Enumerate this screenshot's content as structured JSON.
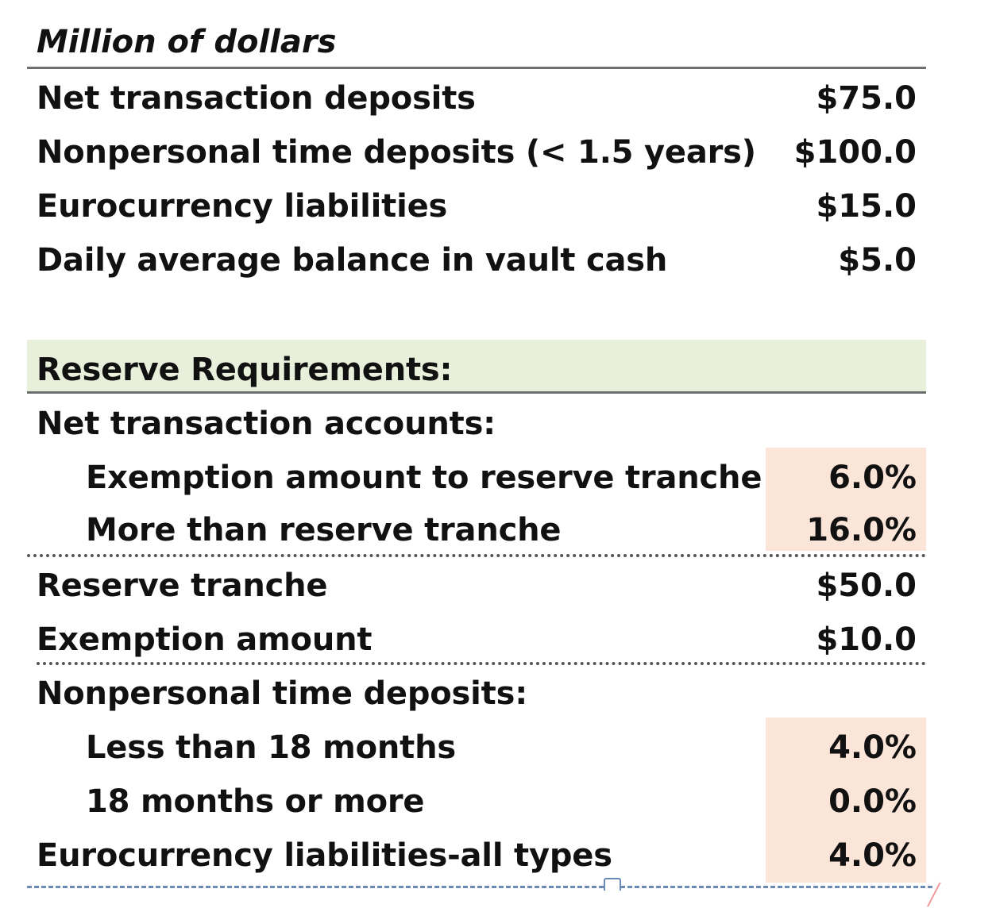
{
  "header": {
    "title": "Million of dollars"
  },
  "balances": [
    {
      "label": "Net transaction deposits",
      "value": "$75.0"
    },
    {
      "label": "Nonpersonal time deposits (< 1.5 years)",
      "value": "$100.0"
    },
    {
      "label": "Eurocurrency liabilities",
      "value": "$15.0"
    },
    {
      "label": "Daily average balance in vault cash",
      "value": "$5.0"
    }
  ],
  "reserve": {
    "heading": "Reserve Requirements:",
    "net_transaction": {
      "label": "Net transaction accounts:",
      "exemption_to_tranche": {
        "label": "Exemption amount to reserve tranche",
        "value": "6.0%"
      },
      "more_than_tranche": {
        "label": "More than reserve tranche",
        "value": "16.0%"
      }
    },
    "reserve_tranche": {
      "label": "Reserve tranche",
      "value": "$50.0"
    },
    "exemption_amount": {
      "label": "Exemption amount",
      "value": "$10.0"
    },
    "nonpersonal": {
      "label": "Nonpersonal time deposits:",
      "less_than_18": {
        "label": "Less than 18 months",
        "value": "4.0%"
      },
      "more_than_18": {
        "label": "18 months or more",
        "value": "0.0%"
      }
    },
    "eurocurrency": {
      "label": "Eurocurrency liabilities-all types",
      "value": "4.0%"
    }
  },
  "colors": {
    "heading_band": "#e8efdb",
    "input_cells": "#fbe5d8",
    "selection_border": "#6a8bb5"
  }
}
